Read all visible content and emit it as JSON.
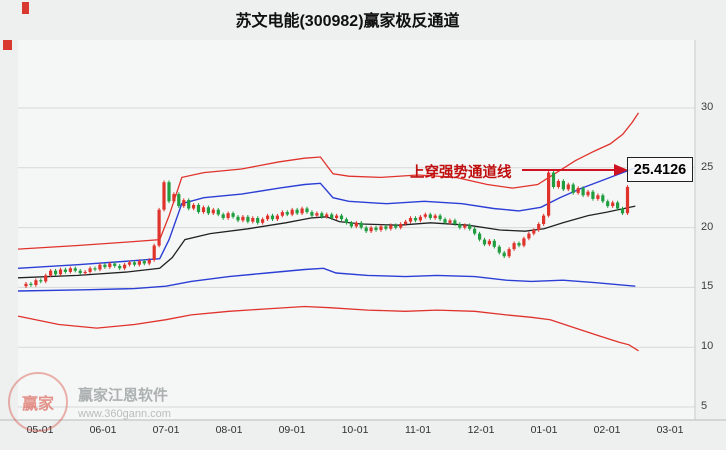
{
  "watermark": {
    "brand": "赢家江恩软件",
    "url": "www.360gann.com",
    "logo_char": "赢家"
  },
  "chart_data": {
    "type": "candlestick",
    "title": "苏文电能(300982)赢家极反通道",
    "annotation": {
      "text": "上穿强势通道线",
      "value_label": "25.4126"
    },
    "x_labels": [
      "05-01",
      "06-01",
      "07-01",
      "08-01",
      "09-01",
      "10-01",
      "11-01",
      "12-01",
      "01-01",
      "02-01",
      "03-01"
    ],
    "y_ticks": [
      30,
      25,
      20,
      15,
      10,
      5
    ],
    "ylim": [
      5,
      31
    ],
    "grid": "horizontal",
    "legend": "none",
    "wick": 0.15,
    "colors": {
      "up": "#e0332c",
      "down": "#1f9d3f"
    },
    "candles": [
      [
        15.1,
        15.3
      ],
      [
        15.3,
        15.2
      ],
      [
        15.2,
        15.6
      ],
      [
        15.6,
        15.5
      ],
      [
        15.5,
        16.0
      ],
      [
        16.0,
        16.4
      ],
      [
        16.4,
        16.1
      ],
      [
        16.1,
        16.5
      ],
      [
        16.5,
        16.3
      ],
      [
        16.3,
        16.6
      ],
      [
        16.6,
        16.4
      ],
      [
        16.4,
        16.2
      ],
      [
        16.2,
        16.3
      ],
      [
        16.3,
        16.6
      ],
      [
        16.6,
        16.5
      ],
      [
        16.5,
        16.9
      ],
      [
        16.9,
        16.7
      ],
      [
        16.7,
        17.0
      ],
      [
        17.0,
        16.8
      ],
      [
        16.8,
        16.6
      ],
      [
        16.6,
        16.9
      ],
      [
        16.9,
        17.1
      ],
      [
        17.1,
        16.9
      ],
      [
        16.9,
        17.2
      ],
      [
        17.2,
        17.0
      ],
      [
        17.0,
        17.3
      ],
      [
        17.3,
        18.5
      ],
      [
        18.5,
        21.5
      ],
      [
        21.5,
        23.8
      ],
      [
        23.8,
        22.2
      ],
      [
        22.2,
        22.8
      ],
      [
        22.8,
        21.8
      ],
      [
        21.8,
        22.3
      ],
      [
        22.3,
        21.6
      ],
      [
        21.6,
        21.9
      ],
      [
        21.9,
        21.3
      ],
      [
        21.3,
        21.7
      ],
      [
        21.7,
        21.2
      ],
      [
        21.2,
        21.5
      ],
      [
        21.5,
        21.1
      ],
      [
        21.1,
        20.8
      ],
      [
        20.8,
        21.2
      ],
      [
        21.2,
        20.9
      ],
      [
        20.9,
        20.6
      ],
      [
        20.6,
        20.9
      ],
      [
        20.9,
        20.5
      ],
      [
        20.5,
        20.8
      ],
      [
        20.8,
        20.4
      ],
      [
        20.4,
        20.7
      ],
      [
        20.7,
        21.0
      ],
      [
        21.0,
        20.7
      ],
      [
        20.7,
        21.0
      ],
      [
        21.0,
        21.3
      ],
      [
        21.3,
        21.1
      ],
      [
        21.1,
        21.5
      ],
      [
        21.5,
        21.2
      ],
      [
        21.2,
        21.6
      ],
      [
        21.6,
        21.3
      ],
      [
        21.3,
        21.0
      ],
      [
        21.0,
        21.2
      ],
      [
        21.2,
        20.9
      ],
      [
        20.9,
        21.1
      ],
      [
        21.1,
        20.8
      ],
      [
        20.8,
        21.0
      ],
      [
        21.0,
        20.7
      ],
      [
        20.7,
        20.4
      ],
      [
        20.4,
        20.1
      ],
      [
        20.1,
        20.4
      ],
      [
        20.4,
        20.0
      ],
      [
        20.0,
        19.7
      ],
      [
        19.7,
        20.0
      ],
      [
        20.0,
        19.8
      ],
      [
        19.8,
        20.1
      ],
      [
        20.1,
        19.9
      ],
      [
        19.9,
        20.2
      ],
      [
        20.2,
        20.0
      ],
      [
        20.0,
        20.3
      ],
      [
        20.3,
        20.5
      ],
      [
        20.5,
        20.8
      ],
      [
        20.8,
        20.6
      ],
      [
        20.6,
        20.9
      ],
      [
        20.9,
        21.1
      ],
      [
        21.1,
        20.8
      ],
      [
        20.8,
        21.0
      ],
      [
        21.0,
        20.7
      ],
      [
        20.7,
        20.4
      ],
      [
        20.4,
        20.6
      ],
      [
        20.6,
        20.3
      ],
      [
        20.3,
        20.0
      ],
      [
        20.0,
        20.2
      ],
      [
        20.2,
        19.9
      ],
      [
        19.9,
        19.5
      ],
      [
        19.5,
        19.0
      ],
      [
        19.0,
        18.6
      ],
      [
        18.6,
        18.9
      ],
      [
        18.9,
        18.4
      ],
      [
        18.4,
        17.9
      ],
      [
        17.9,
        17.6
      ],
      [
        17.6,
        18.2
      ],
      [
        18.2,
        18.7
      ],
      [
        18.7,
        18.5
      ],
      [
        18.5,
        19.1
      ],
      [
        19.1,
        19.5
      ],
      [
        19.5,
        19.8
      ],
      [
        19.8,
        20.3
      ],
      [
        20.3,
        21.0
      ],
      [
        21.0,
        24.6
      ],
      [
        24.6,
        23.4
      ],
      [
        23.4,
        23.9
      ],
      [
        23.9,
        23.2
      ],
      [
        23.2,
        23.6
      ],
      [
        23.6,
        22.9
      ],
      [
        22.9,
        23.3
      ],
      [
        23.3,
        22.7
      ],
      [
        22.7,
        23.0
      ],
      [
        23.0,
        22.4
      ],
      [
        22.4,
        22.7
      ],
      [
        22.7,
        22.2
      ],
      [
        22.2,
        21.8
      ],
      [
        21.8,
        22.1
      ],
      [
        22.1,
        21.6
      ],
      [
        21.6,
        21.2
      ],
      [
        21.2,
        23.4
      ]
    ],
    "lines": [
      {
        "name": "outer-upper-red",
        "color": "#e0332c",
        "width": 1.3,
        "points": [
          [
            -0.35,
            18.2
          ],
          [
            0.6,
            18.5
          ],
          [
            1.4,
            18.8
          ],
          [
            1.9,
            19.0
          ],
          [
            2.05,
            21.0
          ],
          [
            2.25,
            24.2
          ],
          [
            2.6,
            24.6
          ],
          [
            3.2,
            24.9
          ],
          [
            3.8,
            25.5
          ],
          [
            4.2,
            25.8
          ],
          [
            4.45,
            25.9
          ],
          [
            4.65,
            24.5
          ],
          [
            4.9,
            24.3
          ],
          [
            5.4,
            24.2
          ],
          [
            6.0,
            24.4
          ],
          [
            6.6,
            24.2
          ],
          [
            7.1,
            23.6
          ],
          [
            7.5,
            23.3
          ],
          [
            7.9,
            23.6
          ],
          [
            8.2,
            24.6
          ],
          [
            8.5,
            25.6
          ],
          [
            8.8,
            26.4
          ],
          [
            9.05,
            27.0
          ],
          [
            9.25,
            27.8
          ],
          [
            9.4,
            28.8
          ],
          [
            9.5,
            29.6
          ]
        ]
      },
      {
        "name": "inner-upper-blue",
        "color": "#2b3fd6",
        "width": 1.4,
        "points": [
          [
            -0.35,
            16.6
          ],
          [
            0.6,
            16.9
          ],
          [
            1.4,
            17.2
          ],
          [
            1.9,
            17.4
          ],
          [
            2.05,
            19.0
          ],
          [
            2.25,
            22.0
          ],
          [
            2.6,
            22.5
          ],
          [
            3.2,
            22.8
          ],
          [
            3.8,
            23.3
          ],
          [
            4.2,
            23.6
          ],
          [
            4.45,
            23.7
          ],
          [
            4.65,
            22.5
          ],
          [
            4.9,
            22.2
          ],
          [
            5.5,
            22.0
          ],
          [
            6.1,
            22.2
          ],
          [
            6.7,
            22.0
          ],
          [
            7.2,
            21.6
          ],
          [
            7.6,
            21.4
          ],
          [
            7.95,
            21.7
          ],
          [
            8.25,
            22.5
          ],
          [
            8.6,
            23.3
          ],
          [
            8.9,
            23.9
          ],
          [
            9.15,
            24.4
          ],
          [
            9.45,
            25.0
          ]
        ]
      },
      {
        "name": "mid-black",
        "color": "#222222",
        "width": 1.3,
        "points": [
          [
            -0.35,
            15.8
          ],
          [
            0.6,
            16.0
          ],
          [
            1.4,
            16.3
          ],
          [
            1.9,
            16.6
          ],
          [
            2.1,
            17.5
          ],
          [
            2.3,
            19.0
          ],
          [
            2.7,
            19.5
          ],
          [
            3.3,
            19.9
          ],
          [
            3.9,
            20.4
          ],
          [
            4.3,
            20.8
          ],
          [
            4.55,
            20.9
          ],
          [
            4.75,
            20.5
          ],
          [
            5.1,
            20.3
          ],
          [
            5.7,
            20.2
          ],
          [
            6.2,
            20.4
          ],
          [
            6.8,
            20.2
          ],
          [
            7.3,
            19.8
          ],
          [
            7.7,
            19.7
          ],
          [
            8.0,
            19.9
          ],
          [
            8.3,
            20.4
          ],
          [
            8.7,
            21.0
          ],
          [
            9.0,
            21.3
          ],
          [
            9.45,
            21.8
          ]
        ]
      },
      {
        "name": "inner-lower-blue",
        "color": "#2b3fd6",
        "width": 1.4,
        "points": [
          [
            -0.35,
            14.7
          ],
          [
            0.7,
            14.8
          ],
          [
            1.5,
            14.9
          ],
          [
            2.0,
            15.1
          ],
          [
            2.4,
            15.5
          ],
          [
            3.0,
            15.9
          ],
          [
            3.6,
            16.2
          ],
          [
            4.2,
            16.5
          ],
          [
            4.5,
            16.6
          ],
          [
            4.7,
            16.2
          ],
          [
            5.2,
            16.0
          ],
          [
            5.8,
            15.9
          ],
          [
            6.3,
            16.0
          ],
          [
            6.9,
            15.9
          ],
          [
            7.4,
            15.6
          ],
          [
            7.8,
            15.5
          ],
          [
            8.3,
            15.6
          ],
          [
            8.8,
            15.4
          ],
          [
            9.45,
            15.1
          ]
        ]
      },
      {
        "name": "outer-lower-red",
        "color": "#e0332c",
        "width": 1.3,
        "points": [
          [
            -0.35,
            12.6
          ],
          [
            0.3,
            11.9
          ],
          [
            0.9,
            11.6
          ],
          [
            1.5,
            11.9
          ],
          [
            2.0,
            12.3
          ],
          [
            2.4,
            12.7
          ],
          [
            3.0,
            13.0
          ],
          [
            3.6,
            13.2
          ],
          [
            4.2,
            13.4
          ],
          [
            4.6,
            13.3
          ],
          [
            5.2,
            13.1
          ],
          [
            5.8,
            13.0
          ],
          [
            6.3,
            13.1
          ],
          [
            6.9,
            13.0
          ],
          [
            7.4,
            12.7
          ],
          [
            7.8,
            12.5
          ],
          [
            8.1,
            12.3
          ],
          [
            8.5,
            11.6
          ],
          [
            8.9,
            10.9
          ],
          [
            9.2,
            10.4
          ],
          [
            9.35,
            10.2
          ],
          [
            9.5,
            9.7
          ]
        ]
      }
    ]
  }
}
